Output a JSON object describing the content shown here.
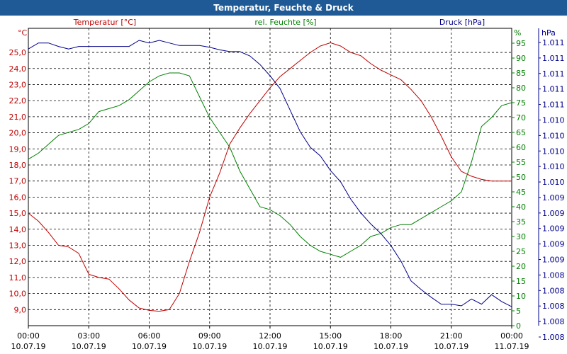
{
  "window": {
    "title": "Temperatur, Feuchte & Druck"
  },
  "chart_data": {
    "type": "line",
    "title": "Temperatur, Feuchte & Druck",
    "x_tick_times": [
      "00:00",
      "03:00",
      "06:00",
      "09:00",
      "12:00",
      "15:00",
      "18:00",
      "21:00",
      "00:00"
    ],
    "x_tick_dates": [
      "10.07.19",
      "10.07.19",
      "10.07.19",
      "10.07.19",
      "10.07.19",
      "10.07.19",
      "10.07.19",
      "10.07.19",
      "11.07.19"
    ],
    "x_range_hours": [
      0,
      24
    ],
    "grid": true,
    "axes": {
      "temperature": {
        "label": "Temperatur [°C]",
        "unit": "°C",
        "color": "#c00000",
        "side": "left",
        "range": [
          8.0,
          26.5
        ],
        "ticks": [
          9.0,
          10.0,
          11.0,
          12.0,
          13.0,
          14.0,
          15.0,
          16.0,
          17.0,
          18.0,
          19.0,
          20.0,
          21.0,
          22.0,
          23.0,
          24.0,
          25.0
        ],
        "tick_labels": [
          "9,0",
          "10,0",
          "11,0",
          "12,0",
          "13,0",
          "14,0",
          "15,0",
          "16,0",
          "17,0",
          "18,0",
          "19,0",
          "20,0",
          "21,0",
          "22,0",
          "23,0",
          "24,0",
          "25,0"
        ]
      },
      "humidity": {
        "label": "rel. Feuchte [%]",
        "unit": "%",
        "color": "#008000",
        "side": "right-inner",
        "range": [
          0,
          100
        ],
        "ticks": [
          0,
          5,
          10,
          15,
          20,
          25,
          30,
          35,
          40,
          45,
          50,
          55,
          60,
          65,
          70,
          75,
          80,
          85,
          90,
          95
        ],
        "tick_labels": [
          "0",
          "5",
          "10",
          "15",
          "20",
          "25",
          "30",
          "35",
          "40",
          "45",
          "50",
          "55",
          "60",
          "65",
          "70",
          "75",
          "80",
          "85",
          "90",
          "95"
        ]
      },
      "pressure": {
        "label": "Druck [hPa]",
        "unit": "hPa",
        "color": "#00008b",
        "side": "right-outer",
        "range": [
          1007.75,
          1011.2
        ],
        "tick_labels": [
          "1.011",
          "1.011",
          "1.011",
          "1.011",
          "1.011",
          "1.010",
          "1.010",
          "1.010",
          "1.010",
          "1.010",
          "1.009",
          "1.009",
          "1.009",
          "1.009",
          "1.009",
          "1.008",
          "1.008",
          "1.008",
          "1.008",
          "1.008"
        ]
      }
    },
    "series": [
      {
        "name": "Temperatur",
        "axis": "temperature",
        "color": "#c00000",
        "x": [
          0,
          0.5,
          1,
          1.5,
          2,
          2.5,
          3,
          3.5,
          4,
          4.5,
          5,
          5.5,
          6,
          6.5,
          7,
          7.5,
          8,
          8.5,
          9,
          9.5,
          10,
          10.5,
          11,
          11.5,
          12,
          12.5,
          13,
          13.5,
          14,
          14.5,
          15,
          15.5,
          16,
          16.5,
          17,
          17.5,
          18,
          18.5,
          19,
          19.5,
          20,
          20.5,
          21,
          21.5,
          22,
          22.5,
          23,
          23.5,
          24
        ],
        "y": [
          15.0,
          14.5,
          13.8,
          13.0,
          12.9,
          12.5,
          11.2,
          11.0,
          10.9,
          10.3,
          9.6,
          9.1,
          8.95,
          8.9,
          9.0,
          10.0,
          12.0,
          13.8,
          16.0,
          17.5,
          19.3,
          20.3,
          21.2,
          22.0,
          22.8,
          23.5,
          24.0,
          24.5,
          25.0,
          25.4,
          25.6,
          25.4,
          25.0,
          24.8,
          24.3,
          23.9,
          23.6,
          23.3,
          22.7,
          22.0,
          21.0,
          19.8,
          18.5,
          17.6,
          17.3,
          17.1,
          17.0,
          17.0,
          17.0
        ]
      },
      {
        "name": "rel. Feuchte",
        "axis": "humidity",
        "color": "#008000",
        "x": [
          0,
          0.5,
          1,
          1.5,
          2,
          2.5,
          3,
          3.5,
          4,
          4.5,
          5,
          5.5,
          6,
          6.5,
          7,
          7.5,
          8,
          8.5,
          9,
          9.5,
          10,
          10.5,
          11,
          11.5,
          12,
          12.5,
          13,
          13.5,
          14,
          14.5,
          15,
          15.5,
          16,
          16.5,
          17,
          17.5,
          18,
          18.5,
          19,
          19.5,
          20,
          20.5,
          21,
          21.5,
          22,
          22.5,
          23,
          23.5,
          24
        ],
        "y": [
          56,
          58,
          61,
          64,
          65,
          66,
          68,
          72,
          73,
          74,
          76,
          79,
          82,
          84,
          85,
          85,
          84,
          77,
          70,
          65,
          60,
          52,
          46,
          40,
          39,
          37,
          34,
          30,
          27,
          25,
          24,
          23,
          25,
          27,
          30,
          31,
          33,
          34,
          34,
          36,
          38,
          40,
          42,
          45,
          55,
          67,
          70,
          74,
          75
        ]
      },
      {
        "name": "Druck",
        "axis": "pressure",
        "color": "#00008b",
        "x": [
          0,
          0.5,
          1,
          1.5,
          2,
          2.5,
          3,
          3.5,
          4,
          4.5,
          5,
          5.5,
          6,
          6.5,
          7,
          7.5,
          8,
          8.5,
          9,
          9.5,
          10,
          10.5,
          11,
          11.5,
          12,
          12.5,
          13,
          13.5,
          14,
          14.5,
          15,
          15.5,
          16,
          16.5,
          17,
          17.5,
          18,
          18.5,
          19,
          19.5,
          20,
          20.5,
          21,
          21.5,
          22,
          22.5,
          23,
          23.5,
          24
        ],
        "y": [
          1010.96,
          1011.03,
          1011.03,
          1010.99,
          1010.96,
          1010.99,
          1010.99,
          1010.99,
          1010.99,
          1010.99,
          1010.99,
          1011.06,
          1011.03,
          1011.06,
          1011.03,
          1011.0,
          1011.0,
          1011.0,
          1010.98,
          1010.95,
          1010.93,
          1010.93,
          1010.88,
          1010.78,
          1010.65,
          1010.5,
          1010.25,
          1010.0,
          1009.82,
          1009.72,
          1009.55,
          1009.42,
          1009.22,
          1009.06,
          1008.93,
          1008.82,
          1008.68,
          1008.5,
          1008.27,
          1008.17,
          1008.08,
          1008.0,
          1008.0,
          1007.98,
          1008.06,
          1008.0,
          1008.11,
          1008.03,
          1007.97
        ]
      }
    ]
  }
}
